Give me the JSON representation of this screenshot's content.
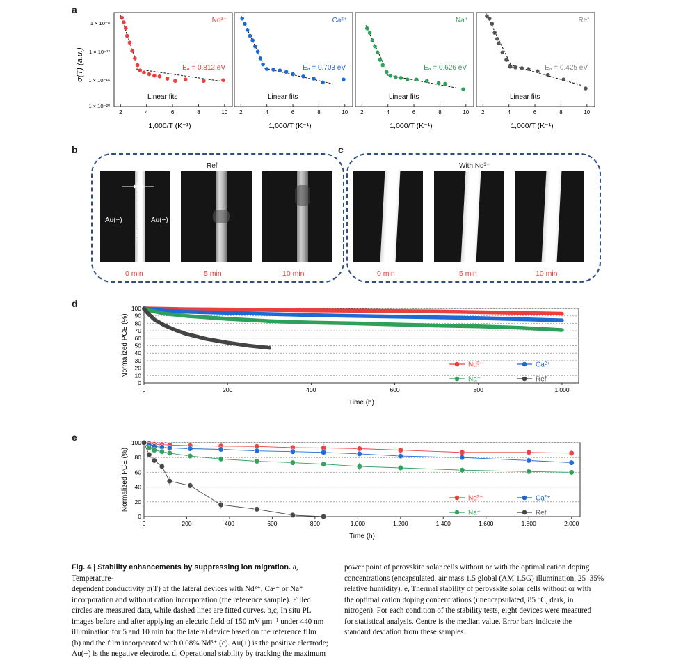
{
  "panel_labels": {
    "a": "a",
    "b": "b",
    "c": "c",
    "d": "d",
    "e": "e"
  },
  "panel_a": {
    "ylabel": "σ(T) (a.u.)",
    "xlabel": "1,000/T (K⁻¹)",
    "yticks": [
      "1 × 10⁻⁸",
      "1 × 10⁻¹²",
      "1 × 10⁻¹⁶",
      "1 × 10⁻²⁰"
    ],
    "xticks": [
      "2",
      "4",
      "6",
      "8",
      "10"
    ],
    "fit_label": "Linear fits",
    "subplots": [
      {
        "ion": "Nd³⁺",
        "ea": "Eₐ = 0.812 eV",
        "color": "#e8403f",
        "points": [
          [
            2.1,
            -8.2
          ],
          [
            2.25,
            -8.8
          ],
          [
            2.4,
            -9.6
          ],
          [
            2.5,
            -10.6
          ],
          [
            2.7,
            -11.5
          ],
          [
            2.9,
            -12.6
          ],
          [
            3.1,
            -13.6
          ],
          [
            3.3,
            -14.5
          ],
          [
            3.5,
            -15.2
          ],
          [
            3.8,
            -15.5
          ],
          [
            4.2,
            -15.7
          ],
          [
            4.6,
            -15.9
          ],
          [
            5.0,
            -16.0
          ],
          [
            5.6,
            -16.3
          ],
          [
            6.2,
            -16.6
          ],
          [
            7.0,
            -16.4
          ],
          [
            8.4,
            -16.6
          ],
          [
            9.9,
            -16.5
          ]
        ],
        "fit1": [
          [
            2.0,
            -7.9
          ],
          [
            3.2,
            -14.0
          ]
        ],
        "fit2": [
          [
            3.2,
            -15.0
          ],
          [
            10.0,
            -16.7
          ]
        ]
      },
      {
        "ion": "Ca²⁺",
        "ea": "Eₐ = 0.703 eV",
        "color": "#1e6ad4",
        "points": [
          [
            2.1,
            -8.3
          ],
          [
            2.3,
            -9.0
          ],
          [
            2.5,
            -9.8
          ],
          [
            2.7,
            -10.6
          ],
          [
            2.9,
            -11.2
          ],
          [
            3.1,
            -12.0
          ],
          [
            3.3,
            -12.7
          ],
          [
            3.5,
            -13.6
          ],
          [
            3.7,
            -14.4
          ],
          [
            4.0,
            -15.0
          ],
          [
            4.5,
            -15.1
          ],
          [
            5.0,
            -15.2
          ],
          [
            5.5,
            -15.4
          ],
          [
            6.0,
            -15.7
          ],
          [
            6.8,
            -16.0
          ],
          [
            7.6,
            -16.3
          ],
          [
            8.3,
            -16.8
          ],
          [
            9.9,
            -16.4
          ]
        ],
        "fit1": [
          [
            2.0,
            -7.9
          ],
          [
            3.8,
            -14.6
          ]
        ],
        "fit2": [
          [
            3.8,
            -14.9
          ],
          [
            9.1,
            -17.0
          ]
        ]
      },
      {
        "ion": "Na⁺",
        "ea": "Eₐ = 0.626 eV",
        "color": "#2ea05a",
        "points": [
          [
            2.4,
            -9.6
          ],
          [
            2.6,
            -10.2
          ],
          [
            2.8,
            -11.2
          ],
          [
            3.0,
            -12.0
          ],
          [
            3.2,
            -12.8
          ],
          [
            3.4,
            -13.8
          ],
          [
            3.6,
            -14.5
          ],
          [
            3.9,
            -15.4
          ],
          [
            4.2,
            -15.9
          ],
          [
            4.6,
            -16.1
          ],
          [
            5.0,
            -16.2
          ],
          [
            5.5,
            -16.4
          ],
          [
            6.2,
            -16.4
          ],
          [
            7.0,
            -16.6
          ],
          [
            7.9,
            -16.9
          ],
          [
            8.4,
            -17.0
          ],
          [
            9.8,
            -17.7
          ]
        ],
        "fit1": [
          [
            2.3,
            -9.2
          ],
          [
            4.0,
            -15.6
          ]
        ],
        "fit2": [
          [
            3.9,
            -15.8
          ],
          [
            9.2,
            -17.5
          ]
        ]
      },
      {
        "ion": "Ref",
        "ea": "Eₐ = 0.425 eV",
        "color": "#555555",
        "points": [
          [
            2.3,
            -8.0
          ],
          [
            2.5,
            -8.3
          ],
          [
            2.7,
            -9.0
          ],
          [
            2.9,
            -10.2
          ],
          [
            3.1,
            -11.0
          ],
          [
            3.2,
            -11.6
          ],
          [
            3.5,
            -12.8
          ],
          [
            3.8,
            -13.8
          ],
          [
            4.1,
            -14.7
          ],
          [
            4.5,
            -14.8
          ],
          [
            5.0,
            -14.9
          ],
          [
            5.5,
            -15.0
          ],
          [
            6.2,
            -15.3
          ],
          [
            7.0,
            -15.8
          ],
          [
            8.2,
            -16.4
          ],
          [
            9.9,
            -17.6
          ]
        ],
        "fit1": [
          [
            2.2,
            -7.5
          ],
          [
            4.3,
            -15.0
          ]
        ],
        "fit2": [
          [
            4.0,
            -14.4
          ],
          [
            9.6,
            -17.2
          ]
        ]
      }
    ]
  },
  "panel_b": {
    "title": "Ref",
    "au_plus": "Au(+)",
    "au_minus": "Au(−)",
    "scale_label": "100 μm perovskite",
    "times": [
      "0 min",
      "5 min",
      "10 min"
    ]
  },
  "panel_c": {
    "title": "With Nd³⁺",
    "times": [
      "0 min",
      "5 min",
      "10 min"
    ]
  },
  "chart_data": [
    {
      "type": "line",
      "panel": "d",
      "xlabel": "Time (h)",
      "ylabel": "Normalized PCE (%)",
      "xlim": [
        0,
        1040
      ],
      "ylim": [
        0,
        100
      ],
      "xticks": [
        "0",
        "200",
        "400",
        "600",
        "800",
        "1,000"
      ],
      "yticks": [
        "0",
        "10",
        "20",
        "30",
        "40",
        "50",
        "60",
        "70",
        "80",
        "90",
        "100"
      ],
      "legend": [
        "Nd³⁺",
        "Ca²⁺",
        "Na⁺",
        "Ref"
      ],
      "series": [
        {
          "name": "Nd³⁺",
          "color": "#e8403f",
          "x": [
            0,
            50,
            100,
            200,
            300,
            400,
            500,
            600,
            700,
            800,
            900,
            1000
          ],
          "y": [
            100,
            99.5,
            99,
            98.5,
            98,
            97.5,
            97,
            96.5,
            96,
            95,
            94,
            93
          ]
        },
        {
          "name": "Ca²⁺",
          "color": "#1e6ad4",
          "x": [
            0,
            50,
            100,
            200,
            300,
            400,
            500,
            600,
            700,
            800,
            900,
            1000
          ],
          "y": [
            100,
            97,
            95.5,
            94,
            92.5,
            91,
            90,
            89,
            88,
            87,
            85.5,
            84
          ]
        },
        {
          "name": "Na⁺",
          "color": "#2ea05a",
          "x": [
            0,
            50,
            100,
            200,
            300,
            400,
            500,
            600,
            700,
            800,
            900,
            1000
          ],
          "y": [
            99,
            93,
            90,
            86,
            83,
            81,
            80,
            78.5,
            77,
            76,
            74,
            71
          ]
        },
        {
          "name": "Ref",
          "color": "#444444",
          "x": [
            0,
            10,
            25,
            50,
            75,
            100,
            150,
            200,
            250,
            300
          ],
          "y": [
            100,
            93,
            85,
            77,
            71,
            66,
            59,
            54,
            50,
            47
          ]
        }
      ]
    },
    {
      "type": "line",
      "panel": "e",
      "xlabel": "Time (h)",
      "ylabel": "Normalized PCE (%)",
      "xlim": [
        0,
        2040
      ],
      "ylim": [
        0,
        100
      ],
      "xticks": [
        "0",
        "200",
        "400",
        "600",
        "800",
        "1,000",
        "1,200",
        "1,400",
        "1,600",
        "1,800",
        "2,000"
      ],
      "yticks": [
        "0",
        "20",
        "40",
        "60",
        "80",
        "100"
      ],
      "legend": [
        "Nd³⁺",
        "Ca²⁺",
        "Na⁺",
        "Ref"
      ],
      "series": [
        {
          "name": "Nd³⁺",
          "color": "#e8403f",
          "x": [
            0,
            24,
            48,
            84,
            120,
            216,
            360,
            528,
            696,
            840,
            1008,
            1200,
            1488,
            1800,
            2000
          ],
          "y": [
            100,
            99,
            98,
            97.5,
            97,
            96,
            95.5,
            95,
            93.5,
            93,
            92,
            90,
            87,
            87,
            86
          ],
          "err": [
            2,
            2,
            2,
            2,
            2,
            2,
            3,
            3,
            3,
            5,
            4,
            3,
            3,
            3,
            4
          ]
        },
        {
          "name": "Ca²⁺",
          "color": "#1e6ad4",
          "x": [
            0,
            24,
            48,
            84,
            120,
            216,
            360,
            528,
            696,
            840,
            1008,
            1200,
            1488,
            1800,
            2000
          ],
          "y": [
            100,
            97,
            95,
            94,
            93,
            92,
            91,
            89,
            88,
            87,
            85,
            82,
            80,
            76,
            73
          ],
          "err": [
            2,
            2,
            2,
            2,
            2,
            2,
            2,
            2,
            3,
            3,
            3,
            3,
            3,
            3,
            3
          ]
        },
        {
          "name": "Na⁺",
          "color": "#2ea05a",
          "x": [
            0,
            24,
            48,
            84,
            120,
            216,
            360,
            528,
            696,
            840,
            1008,
            1200,
            1488,
            1800,
            2000
          ],
          "y": [
            100,
            93,
            90,
            88,
            86,
            82,
            78,
            75,
            73,
            71,
            68,
            66,
            63,
            61,
            60
          ],
          "err": [
            2,
            2,
            2,
            2,
            3,
            3,
            4,
            4,
            4,
            4,
            5,
            4,
            4,
            3,
            3
          ]
        },
        {
          "name": "Ref",
          "color": "#444444",
          "x": [
            0,
            24,
            48,
            84,
            120,
            216,
            360,
            528,
            696,
            840
          ],
          "y": [
            100,
            84,
            76,
            68,
            48,
            42,
            16,
            10,
            2,
            0
          ],
          "err": [
            2,
            3,
            4,
            4,
            6,
            4,
            5,
            4,
            2,
            1
          ]
        }
      ]
    }
  ],
  "caption_left": {
    "fig_label": "Fig. 4 | Stability enhancements by suppressing ion migration.",
    "lines": [
      "a, Temperature-",
      "dependent conductivity σ(T) of the lateral devices with Nd³⁺, Ca²⁺ or Na⁺",
      "incorporation and without cation incorporation (the reference sample). Filled",
      "circles are measured data, while dashed lines are fitted curves. b,c, In situ PL",
      "images before and after applying an electric field of 150 mV μm⁻¹ under 440 nm",
      "illumination for 5 and 10 min for the lateral device based on the reference film",
      "(b) and the film incorporated with 0.08% Nd³⁺ (c). Au(+) is the positive electrode;",
      "Au(−) is the negative electrode. d, Operational stability by tracking the maximum"
    ]
  },
  "caption_right": {
    "lines": [
      "power point of perovskite solar cells without or with the optimal cation doping",
      "concentrations (encapsulated, air mass 1.5 global (AM 1.5G) illumination, 25–35%",
      "relative humidity). e, Thermal stability of perovskite solar cells without or with",
      "the optimal cation doping concentrations (unencapsulated, 85 °C, dark, in",
      "nitrogen). For each condition of the stability tests, eight devices were measured",
      "for statistical analysis. Centre is the median value. Error bars indicate the",
      "standard deviation from these samples."
    ]
  }
}
